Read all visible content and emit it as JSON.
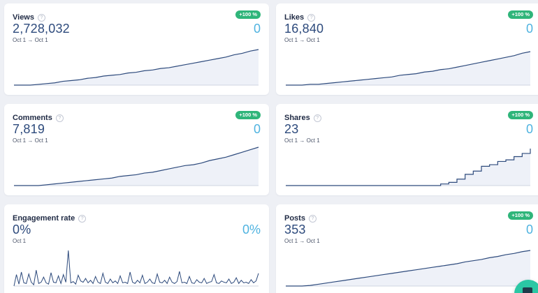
{
  "cards": [
    {
      "title": "Views",
      "value": "2,728,032",
      "compare": "0",
      "badge": "+100 %",
      "range": "Oct 1 → Oct 1",
      "chart_data": {
        "type": "area",
        "x": [
          0,
          1,
          2,
          3,
          4,
          5,
          6,
          7,
          8,
          9,
          10,
          11,
          12,
          13,
          14,
          15,
          16,
          17,
          18,
          19,
          20,
          21,
          22,
          23,
          24,
          25,
          26,
          27,
          28,
          29,
          30
        ],
        "values": [
          0,
          0,
          0,
          1,
          2,
          3,
          5,
          6,
          7,
          9,
          10,
          12,
          13,
          14,
          16,
          17,
          19,
          20,
          22,
          23,
          25,
          27,
          29,
          31,
          33,
          35,
          37,
          40,
          42,
          45,
          47
        ]
      }
    },
    {
      "title": "Likes",
      "value": "16,840",
      "compare": "0",
      "badge": "+100 %",
      "range": "Oct 1 → Oct 1",
      "chart_data": {
        "type": "area",
        "x": [
          0,
          1,
          2,
          3,
          4,
          5,
          6,
          7,
          8,
          9,
          10,
          11,
          12,
          13,
          14,
          15,
          16,
          17,
          18,
          19,
          20,
          21,
          22,
          23,
          24,
          25,
          26,
          27,
          28,
          29,
          30
        ],
        "values": [
          0,
          0,
          0,
          1,
          1,
          2,
          3,
          4,
          5,
          6,
          7,
          8,
          9,
          10,
          12,
          13,
          14,
          16,
          17,
          19,
          20,
          22,
          24,
          26,
          28,
          30,
          32,
          34,
          36,
          39,
          41
        ]
      }
    },
    {
      "title": "Comments",
      "value": "7,819",
      "compare": "0",
      "badge": "+100 %",
      "range": "Oct 1 → Oct 1",
      "chart_data": {
        "type": "area",
        "x": [
          0,
          1,
          2,
          3,
          4,
          5,
          6,
          7,
          8,
          9,
          10,
          11,
          12,
          13,
          14,
          15,
          16,
          17,
          18,
          19,
          20,
          21,
          22,
          23,
          24,
          25,
          26,
          27,
          28,
          29,
          30
        ],
        "values": [
          0,
          0,
          0,
          0,
          1,
          2,
          3,
          4,
          5,
          6,
          7,
          8,
          9,
          11,
          12,
          13,
          15,
          16,
          18,
          20,
          22,
          24,
          25,
          27,
          30,
          32,
          34,
          37,
          40,
          43,
          46
        ]
      }
    },
    {
      "title": "Shares",
      "value": "23",
      "compare": "0",
      "badge": "+100 %",
      "range": "Oct 1 → Oct 1",
      "chart_data": {
        "type": "area",
        "x": [
          0,
          1,
          2,
          3,
          4,
          5,
          6,
          7,
          8,
          9,
          10,
          11,
          12,
          13,
          14,
          15,
          16,
          17,
          18,
          19,
          20,
          21,
          22,
          23,
          24,
          25,
          26,
          27,
          28,
          29,
          30
        ],
        "values": [
          0,
          0,
          0,
          0,
          0,
          0,
          0,
          0,
          0,
          0,
          0,
          0,
          0,
          0,
          0,
          0,
          0,
          0,
          0,
          1,
          2,
          4,
          7,
          9,
          12,
          13,
          15,
          16,
          18,
          20,
          23
        ]
      }
    },
    {
      "title": "Engagement rate",
      "value": "0%",
      "compare": "0%",
      "badge": "",
      "range": "Oct 1",
      "chart_data": {
        "type": "line",
        "x": [
          0,
          1,
          2,
          3,
          4,
          5,
          6,
          7,
          8,
          9,
          10,
          11,
          12,
          13,
          14,
          15,
          16,
          17,
          18,
          19,
          20,
          21,
          22,
          23,
          24,
          25,
          26,
          27,
          28,
          29,
          30,
          31,
          32,
          33,
          34,
          35,
          36,
          37,
          38,
          39,
          40,
          41,
          42,
          43,
          44,
          45,
          46,
          47,
          48,
          49,
          50,
          51,
          52,
          53,
          54,
          55,
          56,
          57,
          58,
          59,
          60,
          61,
          62,
          63,
          64,
          65,
          66,
          67,
          68,
          69,
          70,
          71,
          72,
          73,
          74,
          75,
          76,
          77,
          78,
          79,
          80,
          81,
          82,
          83,
          84,
          85,
          86,
          87,
          88,
          89,
          90,
          91,
          92,
          93,
          94,
          95,
          96,
          97,
          98,
          99
        ],
        "values": [
          0,
          18,
          3,
          22,
          5,
          4,
          19,
          6,
          2,
          25,
          4,
          6,
          14,
          5,
          3,
          21,
          6,
          5,
          16,
          4,
          18,
          6,
          56,
          5,
          7,
          3,
          17,
          8,
          6,
          12,
          5,
          9,
          4,
          15,
          6,
          4,
          20,
          6,
          4,
          11,
          5,
          8,
          4,
          16,
          5,
          6,
          4,
          22,
          6,
          4,
          9,
          5,
          17,
          4,
          6,
          11,
          5,
          4,
          19,
          6,
          5,
          9,
          4,
          14,
          6,
          4,
          7,
          23,
          5,
          6,
          4,
          15,
          5,
          4,
          10,
          6,
          5,
          12,
          4,
          6,
          7,
          18,
          5,
          4,
          8,
          6,
          5,
          11,
          4,
          6,
          13,
          4,
          9,
          5,
          6,
          4,
          10,
          5,
          8,
          20
        ]
      }
    },
    {
      "title": "Posts",
      "value": "353",
      "compare": "0",
      "badge": "+100 %",
      "range": "Oct 1 → Oct 1",
      "chart_data": {
        "type": "area",
        "x": [
          0,
          1,
          2,
          3,
          4,
          5,
          6,
          7,
          8,
          9,
          10,
          11,
          12,
          13,
          14,
          15,
          16,
          17,
          18,
          19,
          20,
          21,
          22,
          23,
          24,
          25,
          26,
          27,
          28,
          29,
          30
        ],
        "values": [
          0,
          0,
          0,
          1,
          3,
          5,
          7,
          9,
          11,
          13,
          15,
          17,
          19,
          21,
          23,
          25,
          27,
          29,
          31,
          33,
          35,
          37,
          40,
          42,
          44,
          47,
          49,
          52,
          54,
          57,
          59
        ]
      }
    }
  ],
  "colors": {
    "accent_line": "#2d4a7c",
    "area_fill": "#eef1f8",
    "compare": "#4fb3e0",
    "badge": "#2fb57a",
    "baseline": "#cfd5e2"
  },
  "info_icon": "info-circle-icon",
  "fab_icon": "chat-icon"
}
